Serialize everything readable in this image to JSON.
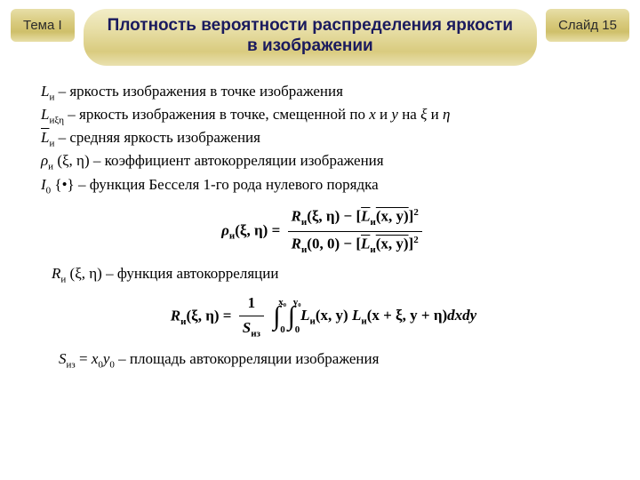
{
  "header": {
    "left_badge": "Тема I",
    "title": "Плотность вероятности распределения яркости в изображении",
    "right_badge": "Слайд 15"
  },
  "defs": {
    "d1_sym": "L",
    "d1_sub": "и",
    "d1_txt": " – яркость изображения в точке изображения",
    "d2_sym": "L",
    "d2_sub": "иξη",
    "d2_txt": " – яркость изображения в точке, смещенной по ",
    "d2_x": "x",
    "d2_and": " и ",
    "d2_y": "y",
    "d2_on": " на ",
    "d2_xi": "ξ",
    "d2_eta": "η",
    "d3_pre": "L",
    "d3_sub": "и",
    "d3_txt": " – средняя яркость изображения",
    "d4_sym": "ρ",
    "d4_sub": "и",
    "d4_args": " (ξ, η) – коэффициент автокорреляции изображения",
    "d5_sym": "I",
    "d5_sub": "0",
    "d5_txt": " {•} – функция Бесселя 1-го рода нулевого порядка"
  },
  "formula1": {
    "lhs": "ρ",
    "lhs_sub": "и",
    "lhs_args": "(ξ, η)",
    "eq": " = ",
    "num_l": "R",
    "num_lsub": "и",
    "num_largs": "(ξ, η)",
    "minus": " − ",
    "num_r_pre": "[",
    "num_r_L": "L",
    "num_r_sub": "и",
    "num_r_args": "(x, y)",
    "num_r_post": "]",
    "den_l": "R",
    "den_lsub": "и",
    "den_largs": "(0, 0)",
    "den_r_pre": "[",
    "den_r_L": "L",
    "den_r_sub": "и",
    "den_r_args": "(x, y)",
    "den_r_post": "]"
  },
  "mid": {
    "R": "R",
    "sub": "и",
    "txt": " (ξ, η) – функция автокорреляции"
  },
  "formula2": {
    "lhs": "R",
    "lhs_sub": "и",
    "lhs_args": "(ξ, η)",
    "eq": " = ",
    "frac_num": "1",
    "frac_den": "S",
    "frac_den_sub": "из",
    "int1_top": "x₀",
    "int1_bot": "0",
    "int2_top": "y₀",
    "int2_bot": "0",
    "body_L1": "L",
    "body_sub": "и",
    "body_args1": "(x, y)",
    "body_L2": "L",
    "body_args2": "(x + ξ, y + η)",
    "tail": "dxdy"
  },
  "last": {
    "S": "S",
    "S_sub": "из",
    "eq": " = ",
    "x": "x",
    "x_sub": "0",
    "y": "y",
    "y_sub": "0",
    "txt": " – площадь автокорреляции изображения"
  },
  "colors": {
    "title_text": "#1a1a5e",
    "badge_bg_top": "#e8dfa8",
    "badge_bg_mid": "#d9cb7f",
    "page_bg": "#ffffff"
  }
}
